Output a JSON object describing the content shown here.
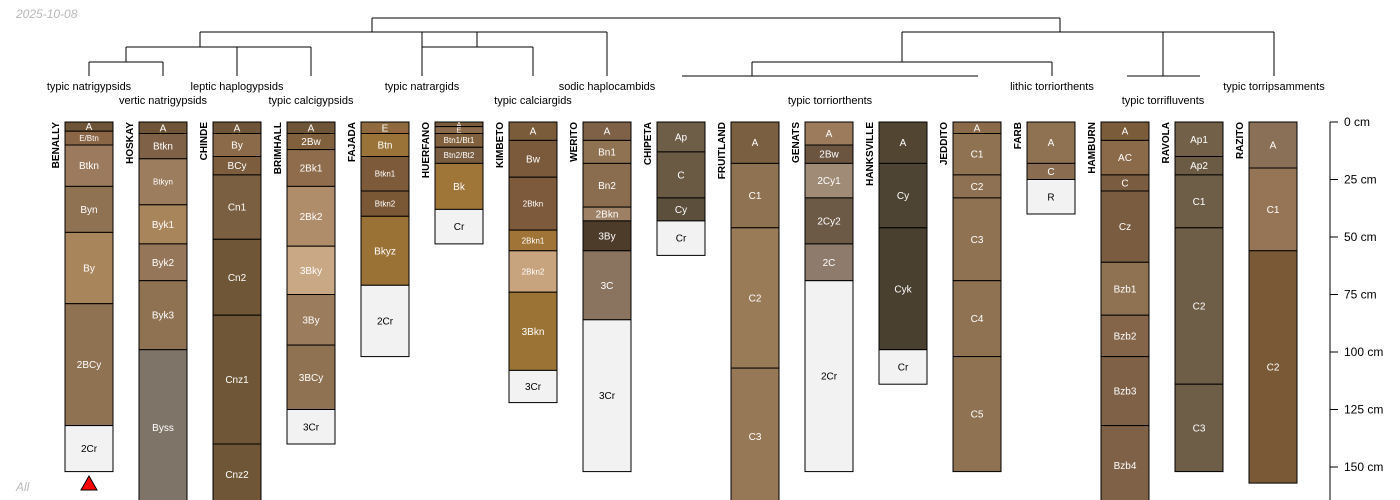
{
  "date_label": "2025-10-08",
  "footer_label": "All",
  "taxa_labels": [
    "typic natrigypsids",
    "vertic natrigypsids",
    "leptic haplogypsids",
    "typic calcigypsids",
    "typic natrargids",
    "typic calciargids",
    "sodic haplocambids",
    "typic torriorthents",
    "lithic torriorthents",
    "typic torrifluvents",
    "typic torripsamments"
  ],
  "depth_axis": {
    "unit": "cm",
    "ticks": [
      {
        "value": 0,
        "label": "0 cm"
      },
      {
        "value": 25,
        "label": "25 cm"
      },
      {
        "value": 50,
        "label": "50 cm"
      },
      {
        "value": 75,
        "label": "75 cm"
      },
      {
        "value": 100,
        "label": "100 cm"
      },
      {
        "value": 125,
        "label": "125 cm"
      },
      {
        "value": 150,
        "label": "150 cm"
      }
    ]
  },
  "colors": {
    "dark_brown": "#6f5538",
    "medium_brown": "#8f7252",
    "light_brown": "#a9855c",
    "tan": "#c7a882",
    "grey_brown": "#7f7468",
    "olive_dark": "#4e4433",
    "bedrock": "#f2f2f2",
    "marker": "#ff0000"
  },
  "profiles": [
    {
      "id": "BENALLY",
      "marker": true,
      "horizons": [
        {
          "name": "A",
          "top": 0,
          "bottom": 4,
          "color": "#6f5538"
        },
        {
          "name": "E/Btn",
          "top": 4,
          "bottom": 10,
          "color": "#8a6647"
        },
        {
          "name": "Btkn",
          "top": 10,
          "bottom": 28,
          "color": "#9c7a5e"
        },
        {
          "name": "Byn",
          "top": 28,
          "bottom": 48,
          "color": "#8f7252"
        },
        {
          "name": "By",
          "top": 48,
          "bottom": 79,
          "color": "#a9855c"
        },
        {
          "name": "2BCy",
          "top": 79,
          "bottom": 132,
          "color": "#8f7252"
        },
        {
          "name": "2Cr",
          "top": 132,
          "bottom": 152,
          "color": "#f2f2f2"
        }
      ]
    },
    {
      "id": "HOSKAY",
      "horizons": [
        {
          "name": "A",
          "top": 0,
          "bottom": 5,
          "color": "#6f5538"
        },
        {
          "name": "Btkn",
          "top": 5,
          "bottom": 16,
          "color": "#7e6146"
        },
        {
          "name": "Btkyn",
          "top": 16,
          "bottom": 36,
          "color": "#9c7d5e"
        },
        {
          "name": "Byk1",
          "top": 36,
          "bottom": 53,
          "color": "#a9855c"
        },
        {
          "name": "Byk2",
          "top": 53,
          "bottom": 69,
          "color": "#967658"
        },
        {
          "name": "Byk3",
          "top": 69,
          "bottom": 99,
          "color": "#8f7252"
        },
        {
          "name": "Byss",
          "top": 99,
          "bottom": 170,
          "color": "#7f7468"
        }
      ]
    },
    {
      "id": "CHINDE",
      "horizons": [
        {
          "name": "A",
          "top": 0,
          "bottom": 5,
          "color": "#6f5538"
        },
        {
          "name": "By",
          "top": 5,
          "bottom": 15,
          "color": "#8a6a48"
        },
        {
          "name": "BCy",
          "top": 15,
          "bottom": 23,
          "color": "#7c5d3e"
        },
        {
          "name": "Cn1",
          "top": 23,
          "bottom": 51,
          "color": "#7a5f41"
        },
        {
          "name": "Cn2",
          "top": 51,
          "bottom": 84,
          "color": "#6e5636"
        },
        {
          "name": "Cnz1",
          "top": 84,
          "bottom": 140,
          "color": "#6e5636"
        },
        {
          "name": "Cnz2",
          "top": 140,
          "bottom": 170,
          "color": "#6e5636"
        }
      ]
    },
    {
      "id": "BRIMHALL",
      "horizons": [
        {
          "name": "A",
          "top": 0,
          "bottom": 5,
          "color": "#6f5538"
        },
        {
          "name": "2Bw",
          "top": 5,
          "bottom": 12,
          "color": "#80603d"
        },
        {
          "name": "2Bk1",
          "top": 12,
          "bottom": 28,
          "color": "#8f6c4c"
        },
        {
          "name": "2Bk2",
          "top": 28,
          "bottom": 54,
          "color": "#b08d6a"
        },
        {
          "name": "3Bky",
          "top": 54,
          "bottom": 75,
          "color": "#c9a985"
        },
        {
          "name": "3By",
          "top": 75,
          "bottom": 97,
          "color": "#9b7c5c"
        },
        {
          "name": "3BCy",
          "top": 97,
          "bottom": 125,
          "color": "#8f7252"
        },
        {
          "name": "3Cr",
          "top": 125,
          "bottom": 140,
          "color": "#f2f2f2"
        }
      ]
    },
    {
      "id": "FAJADA",
      "horizons": [
        {
          "name": "E",
          "top": 0,
          "bottom": 5,
          "color": "#8e6a3e"
        },
        {
          "name": "Btn",
          "top": 5,
          "bottom": 15,
          "color": "#9a7338"
        },
        {
          "name": "Btkn1",
          "top": 15,
          "bottom": 30,
          "color": "#7d5b3a"
        },
        {
          "name": "Btkn2",
          "top": 30,
          "bottom": 41,
          "color": "#7a5836"
        },
        {
          "name": "Bkyz",
          "top": 41,
          "bottom": 71,
          "color": "#9b7236"
        },
        {
          "name": "2Cr",
          "top": 71,
          "bottom": 102,
          "color": "#f2f2f2"
        }
      ]
    },
    {
      "id": "HUERFANO",
      "horizons": [
        {
          "name": "A",
          "top": 0,
          "bottom": 2,
          "color": "#7b5c3c"
        },
        {
          "name": "E",
          "top": 2,
          "bottom": 5,
          "color": "#8a6a48"
        },
        {
          "name": "Btn1/Bt1",
          "top": 5,
          "bottom": 11,
          "color": "#80603d"
        },
        {
          "name": "Btn2/Bt2",
          "top": 11,
          "bottom": 18,
          "color": "#7a5d40"
        },
        {
          "name": "Bk",
          "top": 18,
          "bottom": 38,
          "color": "#a07638"
        },
        {
          "name": "Cr",
          "top": 38,
          "bottom": 53,
          "color": "#f2f2f2"
        }
      ]
    },
    {
      "id": "KIMBETO",
      "horizons": [
        {
          "name": "A",
          "top": 0,
          "bottom": 8,
          "color": "#7a5c3a"
        },
        {
          "name": "Bw",
          "top": 8,
          "bottom": 24,
          "color": "#7b5a3b"
        },
        {
          "name": "2Btkn",
          "top": 24,
          "bottom": 47,
          "color": "#7e5a3c"
        },
        {
          "name": "2Bkn1",
          "top": 47,
          "bottom": 56,
          "color": "#a07436"
        },
        {
          "name": "2Bkn2",
          "top": 56,
          "bottom": 74,
          "color": "#c8a47e"
        },
        {
          "name": "3Bkn",
          "top": 74,
          "bottom": 108,
          "color": "#9a7335"
        },
        {
          "name": "3Cr",
          "top": 108,
          "bottom": 122,
          "color": "#f2f2f2"
        }
      ]
    },
    {
      "id": "WERITO",
      "horizons": [
        {
          "name": "A",
          "top": 0,
          "bottom": 8,
          "color": "#7e6146"
        },
        {
          "name": "Bn1",
          "top": 8,
          "bottom": 18,
          "color": "#8f7252"
        },
        {
          "name": "Bn2",
          "top": 18,
          "bottom": 37,
          "color": "#8a6d4e"
        },
        {
          "name": "2Bkn",
          "top": 37,
          "bottom": 43,
          "color": "#9e8165"
        },
        {
          "name": "3By",
          "top": 43,
          "bottom": 56,
          "color": "#4e3c2b"
        },
        {
          "name": "3C",
          "top": 56,
          "bottom": 86,
          "color": "#8a7460"
        },
        {
          "name": "3Cr",
          "top": 86,
          "bottom": 152,
          "color": "#f2f2f2"
        }
      ]
    },
    {
      "id": "CHIPETA",
      "horizons": [
        {
          "name": "Ap",
          "top": 0,
          "bottom": 13,
          "color": "#6e5e48"
        },
        {
          "name": "C",
          "top": 13,
          "bottom": 33,
          "color": "#6a5a44"
        },
        {
          "name": "Cy",
          "top": 33,
          "bottom": 43,
          "color": "#5c4f3c"
        },
        {
          "name": "Cr",
          "top": 43,
          "bottom": 58,
          "color": "#f2f2f2"
        }
      ]
    },
    {
      "id": "FRUITLAND",
      "horizons": [
        {
          "name": "A",
          "top": 0,
          "bottom": 18,
          "color": "#7a5f41"
        },
        {
          "name": "C1",
          "top": 18,
          "bottom": 46,
          "color": "#8f7252"
        },
        {
          "name": "C2",
          "top": 46,
          "bottom": 107,
          "color": "#9a7b57"
        },
        {
          "name": "C3",
          "top": 107,
          "bottom": 170,
          "color": "#977856"
        }
      ]
    },
    {
      "id": "GENATS",
      "horizons": [
        {
          "name": "A",
          "top": 0,
          "bottom": 10,
          "color": "#9c7b5c"
        },
        {
          "name": "2Bw",
          "top": 10,
          "bottom": 18,
          "color": "#6b5440"
        },
        {
          "name": "2Cy1",
          "top": 18,
          "bottom": 33,
          "color": "#a08c76"
        },
        {
          "name": "2Cy2",
          "top": 33,
          "bottom": 53,
          "color": "#6d5a46"
        },
        {
          "name": "2C",
          "top": 53,
          "bottom": 69,
          "color": "#8e7b6c"
        },
        {
          "name": "2Cr",
          "top": 69,
          "bottom": 152,
          "color": "#f2f2f2"
        }
      ]
    },
    {
      "id": "HANKSVILLE",
      "horizons": [
        {
          "name": "A",
          "top": 0,
          "bottom": 18,
          "color": "#524633"
        },
        {
          "name": "Cy",
          "top": 18,
          "bottom": 46,
          "color": "#4e4433"
        },
        {
          "name": "Cyk",
          "top": 46,
          "bottom": 99,
          "color": "#4a4030"
        },
        {
          "name": "Cr",
          "top": 99,
          "bottom": 114,
          "color": "#f2f2f2"
        }
      ]
    },
    {
      "id": "JEDDITO",
      "horizons": [
        {
          "name": "A",
          "top": 0,
          "bottom": 5,
          "color": "#8a6a48"
        },
        {
          "name": "C1",
          "top": 5,
          "bottom": 23,
          "color": "#8f7252"
        },
        {
          "name": "C2",
          "top": 23,
          "bottom": 33,
          "color": "#8e7152"
        },
        {
          "name": "C3",
          "top": 33,
          "bottom": 69,
          "color": "#8f7252"
        },
        {
          "name": "C4",
          "top": 69,
          "bottom": 102,
          "color": "#8f7252"
        },
        {
          "name": "C5",
          "top": 102,
          "bottom": 152,
          "color": "#8f7252"
        }
      ]
    },
    {
      "id": "FARB",
      "horizons": [
        {
          "name": "A",
          "top": 0,
          "bottom": 18,
          "color": "#8f7252"
        },
        {
          "name": "C",
          "top": 18,
          "bottom": 25,
          "color": "#8a6d50"
        },
        {
          "name": "R",
          "top": 25,
          "bottom": 40,
          "color": "#f2f2f2"
        }
      ]
    },
    {
      "id": "HAMBURN",
      "horizons": [
        {
          "name": "A",
          "top": 0,
          "bottom": 8,
          "color": "#7a5c3a"
        },
        {
          "name": "AC",
          "top": 8,
          "bottom": 23,
          "color": "#8a6a48"
        },
        {
          "name": "C",
          "top": 23,
          "bottom": 30,
          "color": "#7a5d40"
        },
        {
          "name": "Cz",
          "top": 30,
          "bottom": 61,
          "color": "#7a5d40"
        },
        {
          "name": "Bzb1",
          "top": 61,
          "bottom": 84,
          "color": "#8f7252"
        },
        {
          "name": "Bzb2",
          "top": 84,
          "bottom": 102,
          "color": "#84654a"
        },
        {
          "name": "Bzb3",
          "top": 102,
          "bottom": 132,
          "color": "#7e6146"
        },
        {
          "name": "Bzb4",
          "top": 132,
          "bottom": 170,
          "color": "#7e6146"
        }
      ]
    },
    {
      "id": "RAVOLA",
      "horizons": [
        {
          "name": "Ap1",
          "top": 0,
          "bottom": 15,
          "color": "#726048"
        },
        {
          "name": "Ap2",
          "top": 15,
          "bottom": 23,
          "color": "#6b5a44"
        },
        {
          "name": "C1",
          "top": 23,
          "bottom": 46,
          "color": "#6e5d47"
        },
        {
          "name": "C2",
          "top": 46,
          "bottom": 114,
          "color": "#6e5d47"
        },
        {
          "name": "C3",
          "top": 114,
          "bottom": 152,
          "color": "#6e5d47"
        }
      ]
    },
    {
      "id": "RAZITO",
      "horizons": [
        {
          "name": "A",
          "top": 0,
          "bottom": 20,
          "color": "#8a7057"
        },
        {
          "name": "C1",
          "top": 20,
          "bottom": 56,
          "color": "#957555"
        },
        {
          "name": "C2",
          "top": 56,
          "bottom": 157,
          "color": "#7a5a36"
        }
      ]
    }
  ]
}
